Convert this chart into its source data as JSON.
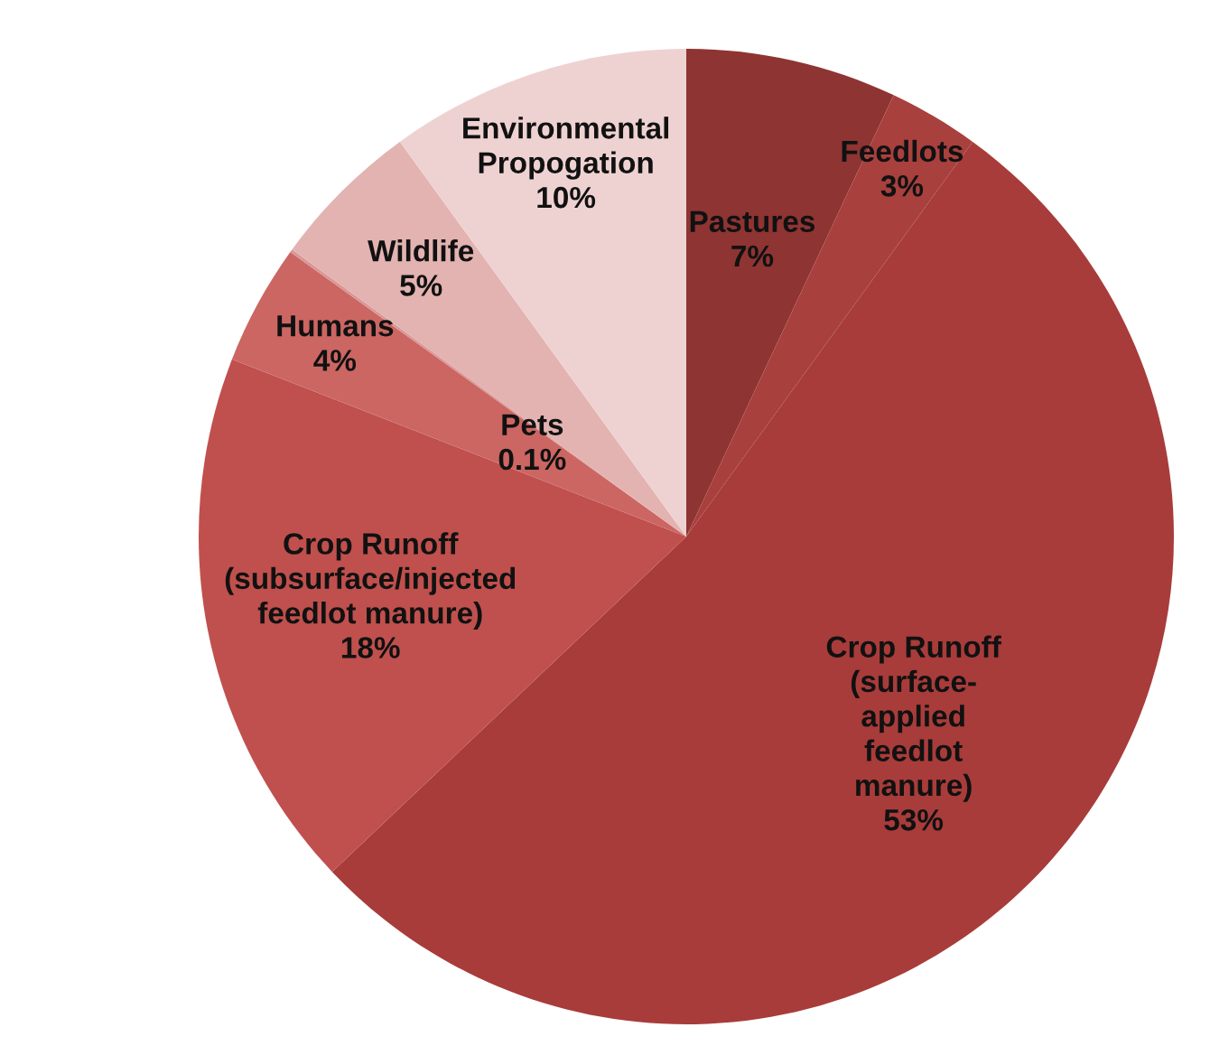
{
  "chart_data": {
    "type": "pie",
    "categories": [
      "Pastures",
      "Feedlots",
      "Crop Runoff\n(surface-\napplied\nfeedlot\nmanure)",
      "Crop Runoff\n(subsurface/injected\nfeedlot manure)",
      "Humans",
      "Pets",
      "Wildlife",
      "Environmental\nPropogation"
    ],
    "values": [
      7,
      3,
      53,
      18,
      4,
      0.1,
      5,
      10
    ],
    "value_labels": [
      "7%",
      "3%",
      "53%",
      "18%",
      "4%",
      "0.1%",
      "5%",
      "10%"
    ],
    "colors": [
      "#8e3432",
      "#a8403e",
      "#a83c3a",
      "#c0504d",
      "#cc6663",
      "#d99795",
      "#e3b3b1",
      "#eed2d1"
    ]
  }
}
